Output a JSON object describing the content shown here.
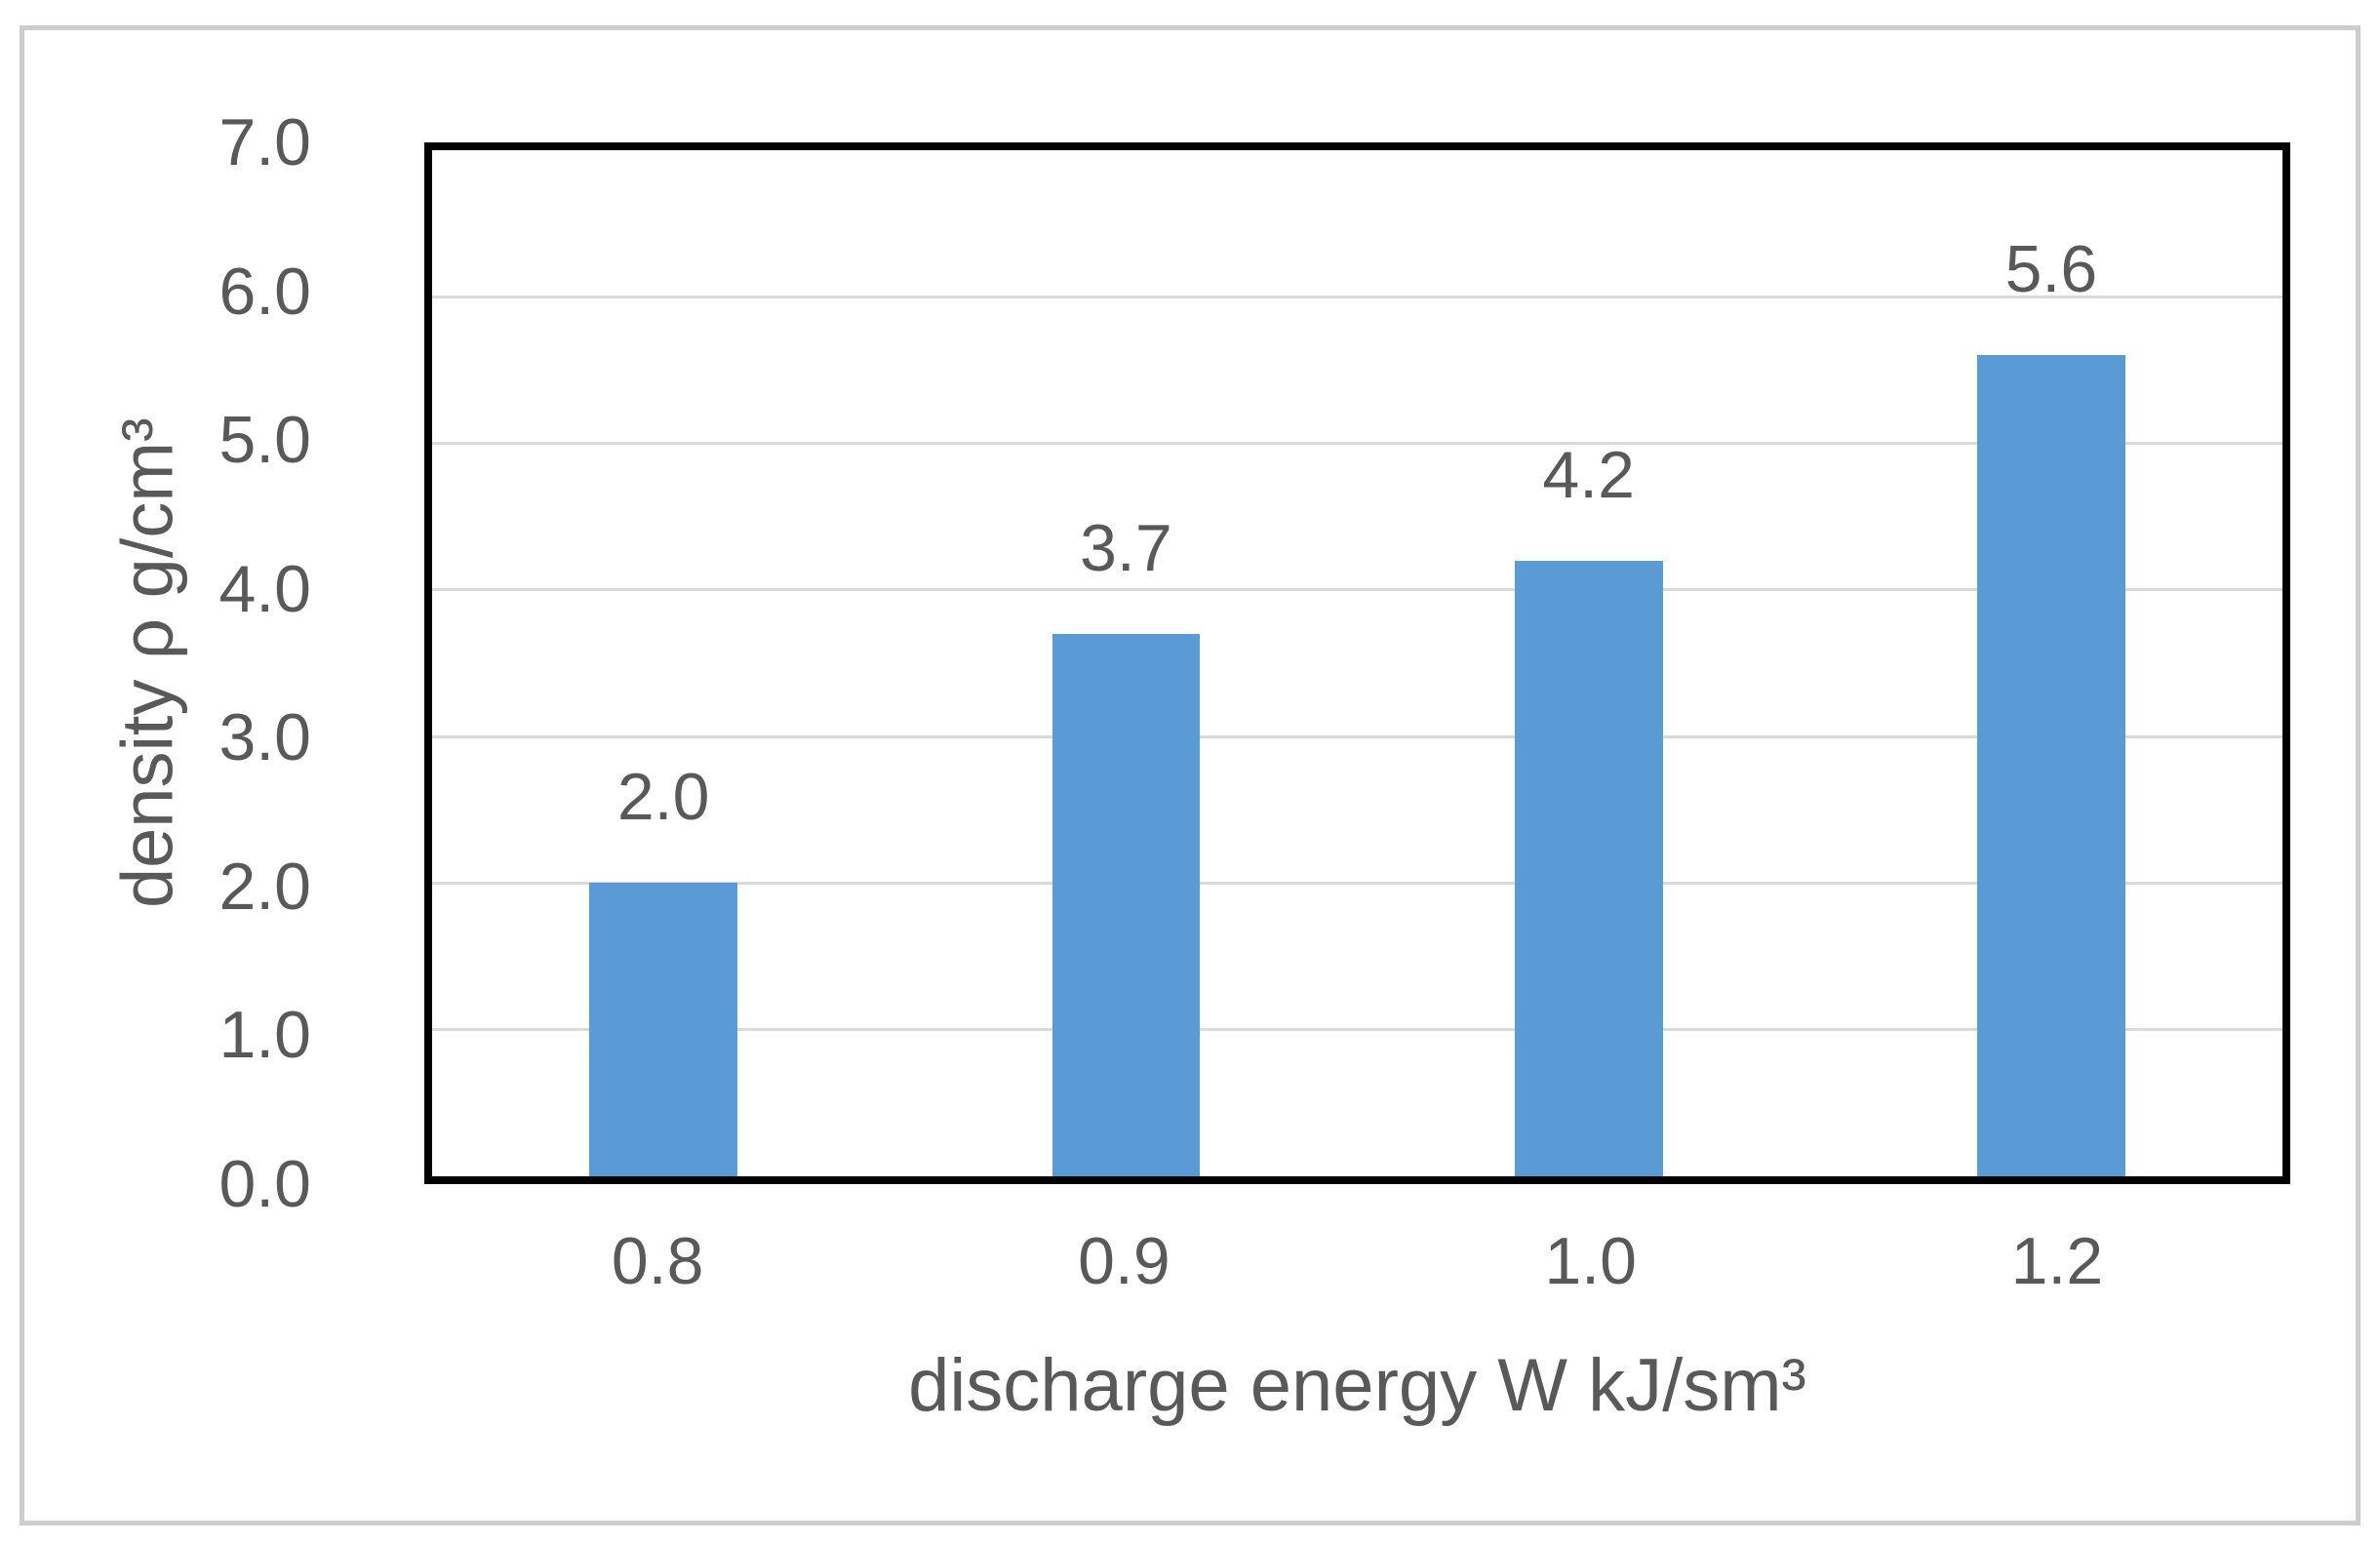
{
  "figure": {
    "frame_color": "#cdcdcd",
    "background": "#ffffff"
  },
  "chart_data": {
    "type": "bar",
    "title": "",
    "categories": [
      "0.8",
      "0.9",
      "1.0",
      "1.2"
    ],
    "values": [
      2.0,
      3.7,
      4.2,
      5.6
    ],
    "value_labels": [
      "2.0",
      "3.7",
      "4.2",
      "5.6"
    ],
    "xlabel": "discharge energy W kJ/sm³",
    "ylabel": "density ρ g/cm³",
    "ylim": [
      0,
      7
    ],
    "yticks": [
      "0.0",
      "1.0",
      "2.0",
      "3.0",
      "4.0",
      "5.0",
      "6.0",
      "7.0"
    ],
    "grid": "horizontal",
    "legend": "none",
    "bar_color": "#5b9bd5",
    "gridline_color": "#d9d9d9",
    "axis_text_color": "#595959",
    "plot_border_color": "#000000"
  }
}
